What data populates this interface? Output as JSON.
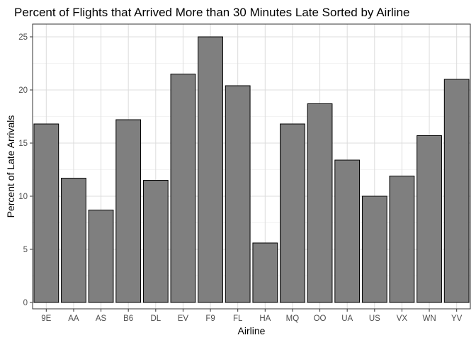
{
  "chart_data": {
    "type": "bar",
    "title": "Percent of Flights that Arrived More than 30 Minutes Late Sorted by Airline",
    "xlabel": "Airline",
    "ylabel": "Percent of Late Arrivals",
    "categories": [
      "9E",
      "AA",
      "AS",
      "B6",
      "DL",
      "EV",
      "F9",
      "FL",
      "HA",
      "MQ",
      "OO",
      "UA",
      "US",
      "VX",
      "WN",
      "YV"
    ],
    "values": [
      16.8,
      11.7,
      8.7,
      17.2,
      11.5,
      21.5,
      25.0,
      20.4,
      5.6,
      16.8,
      18.7,
      13.4,
      10.0,
      11.9,
      15.7,
      21.0
    ],
    "ylim": [
      -0.6,
      26.2
    ],
    "yticks": [
      0,
      5,
      10,
      15,
      20,
      25
    ],
    "grid": true,
    "bar_fill": "#7f7f7f",
    "bar_stroke": "#000000",
    "grid_major_color": "#dcdcdc",
    "grid_minor_color": "#efefef",
    "panel_border_color": "#333333"
  }
}
